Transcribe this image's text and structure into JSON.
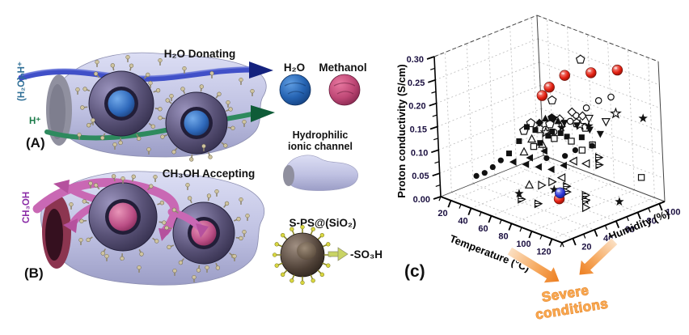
{
  "figure": {
    "panel_a": {
      "label": "(A)",
      "title": "H₂O Donating",
      "channel_label": "(H₂O)ₙH⁺",
      "proton_label": "H⁺"
    },
    "panel_b": {
      "label": "(B)",
      "title": "CH₃OH Accepting",
      "channel_label": "CH₃OH"
    },
    "legend": {
      "water_label": "H₂O",
      "methanol_label": "Methanol",
      "channel_label_line1": "Hydrophilic",
      "channel_label_line2": "ionic channel",
      "particle_label": "S-PS@(SiO₂)",
      "group_label": "-SO₃H"
    },
    "panel_c_label": "(c)",
    "annotation": {
      "line1": "Severe",
      "line2": "conditions",
      "color": "#f9a850"
    }
  },
  "chart_data": {
    "type": "scatter",
    "projection": "3d",
    "zlabel": "Proton conductivity (S/cm)",
    "xlabel": "Temperature (°C)",
    "ylabel": "Humidity (%)",
    "xlim": [
      10,
      130
    ],
    "ylim": [
      10,
      105
    ],
    "zlim": [
      0,
      0.3
    ],
    "x_ticks": [
      20,
      40,
      60,
      80,
      100,
      120
    ],
    "y_ticks": [
      20,
      40,
      60,
      80,
      100
    ],
    "z_ticks": [
      "0.00",
      "0.05",
      "0.10",
      "0.15",
      "0.20",
      "0.25",
      "0.30"
    ],
    "grid": true,
    "series": [
      {
        "name": "open pentagons",
        "marker": "pentagon-open",
        "color": "#111111",
        "points": [
          [
            85,
            75,
            0.295
          ],
          [
            80,
            52,
            0.225
          ],
          [
            62,
            48,
            0.165
          ],
          [
            58,
            45,
            0.148
          ],
          [
            70,
            58,
            0.16
          ],
          [
            86,
            68,
            0.166
          ],
          [
            90,
            72,
            0.156
          ],
          [
            66,
            52,
            0.152
          ]
        ]
      },
      {
        "name": "open circles",
        "marker": "circle-open",
        "color": "#111111",
        "points": [
          [
            98,
            78,
            0.215
          ],
          [
            104,
            84,
            0.222
          ],
          [
            92,
            72,
            0.2
          ],
          [
            88,
            66,
            0.186
          ],
          [
            80,
            60,
            0.165
          ],
          [
            72,
            52,
            0.156
          ],
          [
            76,
            56,
            0.15
          ],
          [
            84,
            64,
            0.172
          ]
        ]
      },
      {
        "name": "open diamonds",
        "marker": "diamond-open",
        "color": "#111111",
        "points": [
          [
            84,
            66,
            0.19
          ],
          [
            78,
            60,
            0.176
          ],
          [
            90,
            70,
            0.183
          ]
        ]
      },
      {
        "name": "open stars",
        "marker": "star-open",
        "color": "#111111",
        "points": [
          [
            108,
            84,
            0.19
          ],
          [
            96,
            62,
            0.176
          ],
          [
            70,
            54,
            0.146
          ]
        ]
      },
      {
        "name": "filled stars",
        "marker": "star-filled",
        "color": "#111111",
        "points": [
          [
            122,
            96,
            0.18
          ],
          [
            98,
            68,
            0.17
          ],
          [
            84,
            56,
            0.166
          ],
          [
            58,
            38,
            0.02
          ],
          [
            78,
            52,
            0.032
          ],
          [
            96,
            64,
            0.012
          ],
          [
            112,
            80,
            0.008
          ]
        ]
      },
      {
        "name": "filled down triangles",
        "marker": "triangle-down-filled",
        "color": "#111111",
        "points": [
          [
            72,
            60,
            0.17
          ],
          [
            78,
            64,
            0.164
          ],
          [
            84,
            70,
            0.158
          ],
          [
            90,
            76,
            0.148
          ],
          [
            96,
            80,
            0.14
          ]
        ]
      },
      {
        "name": "open down triangles",
        "marker": "triangle-down-open",
        "color": "#111111",
        "points": [
          [
            92,
            74,
            0.176
          ],
          [
            100,
            82,
            0.168
          ]
        ]
      },
      {
        "name": "filled up triangles",
        "marker": "triangle-up-filled",
        "color": "#111111",
        "points": [
          [
            68,
            56,
            0.172
          ],
          [
            74,
            62,
            0.166
          ]
        ]
      },
      {
        "name": "open up triangles",
        "marker": "triangle-up-open",
        "color": "#111111",
        "points": [
          [
            60,
            50,
            0.127
          ],
          [
            56,
            46,
            0.1
          ],
          [
            66,
            54,
            0.117
          ],
          [
            62,
            44,
            0.036
          ]
        ]
      },
      {
        "name": "filled squares",
        "marker": "square-filled",
        "color": "#111111",
        "points": [
          [
            60,
            46,
            0.157
          ],
          [
            64,
            50,
            0.15
          ],
          [
            56,
            42,
            0.127
          ],
          [
            52,
            36,
            0.103
          ],
          [
            70,
            56,
            0.137
          ],
          [
            76,
            62,
            0.142
          ],
          [
            86,
            72,
            0.132
          ],
          [
            66,
            52,
            0.122
          ],
          [
            72,
            58,
            0.146
          ],
          [
            80,
            64,
            0.136
          ]
        ]
      },
      {
        "name": "open squares",
        "marker": "square-open",
        "color": "#111111",
        "points": [
          [
            76,
            56,
            0.136
          ],
          [
            82,
            66,
            0.126
          ],
          [
            92,
            76,
            0.117
          ],
          [
            122,
            92,
            0.057
          ],
          [
            66,
            46,
            0.12
          ],
          [
            88,
            70,
            0.108
          ]
        ]
      },
      {
        "name": "filled circles",
        "marker": "circle-filled",
        "color": "#111111",
        "points": [
          [
            50,
            30,
            0.092
          ],
          [
            46,
            26,
            0.078
          ],
          [
            42,
            22,
            0.066
          ],
          [
            38,
            18,
            0.06
          ],
          [
            90,
            62,
            0.117
          ],
          [
            86,
            56,
            0.107
          ],
          [
            96,
            72,
            0.122
          ],
          [
            74,
            50,
            0.098
          ]
        ]
      },
      {
        "name": "filled left triangles",
        "marker": "triangle-left-filled",
        "color": "#111111",
        "points": [
          [
            56,
            36,
            0.088
          ],
          [
            62,
            42,
            0.082
          ],
          [
            68,
            48,
            0.076
          ],
          [
            74,
            54,
            0.07
          ],
          [
            80,
            60,
            0.078
          ],
          [
            86,
            64,
            0.09
          ],
          [
            64,
            44,
            0.096
          ],
          [
            70,
            52,
            0.108
          ]
        ]
      },
      {
        "name": "open left triangles",
        "marker": "triangle-left-open",
        "color": "#111111",
        "points": [
          [
            88,
            62,
            0.092
          ],
          [
            94,
            68,
            0.086
          ],
          [
            82,
            56,
            0.057
          ]
        ]
      },
      {
        "name": "open right triangles",
        "marker": "triangle-right-open",
        "color": "#111111",
        "points": [
          [
            76,
            52,
            0.047
          ],
          [
            72,
            46,
            0.042
          ],
          [
            100,
            60,
            0.004
          ]
        ]
      },
      {
        "name": "hatched right triangles",
        "marker": "triangle-right-hatched",
        "color": "#111111",
        "points": [
          [
            102,
            72,
            0.102
          ],
          [
            102,
            72,
            0.086
          ],
          [
            86,
            56,
            0.042
          ],
          [
            86,
            56,
            0.03
          ],
          [
            98,
            62,
            0.027
          ],
          [
            98,
            62,
            0.016
          ],
          [
            62,
            36,
            0.013
          ],
          [
            72,
            42,
            0.006
          ]
        ]
      },
      {
        "name": "filled pentagon",
        "marker": "pentagon-filled",
        "color": "#111111",
        "points": [
          [
            70,
            60,
            0.172
          ]
        ]
      },
      {
        "name": "filled diamond",
        "marker": "diamond-filled",
        "color": "#111111",
        "points": [
          [
            64,
            54,
            0.162
          ]
        ]
      },
      {
        "name": "red spheres",
        "marker": "sphere",
        "color": "#e41f10",
        "points": [
          [
            85,
            60,
            0.275
          ],
          [
            95,
            75,
            0.275
          ],
          [
            105,
            90,
            0.275
          ],
          [
            80,
            50,
            0.255
          ],
          [
            78,
            45,
            0.24
          ],
          [
            76,
            58,
            0.005
          ]
        ]
      },
      {
        "name": "blue sphere",
        "marker": "sphere",
        "color": "#2b35d8",
        "points": [
          [
            75,
            60,
            0.015
          ]
        ]
      }
    ]
  }
}
